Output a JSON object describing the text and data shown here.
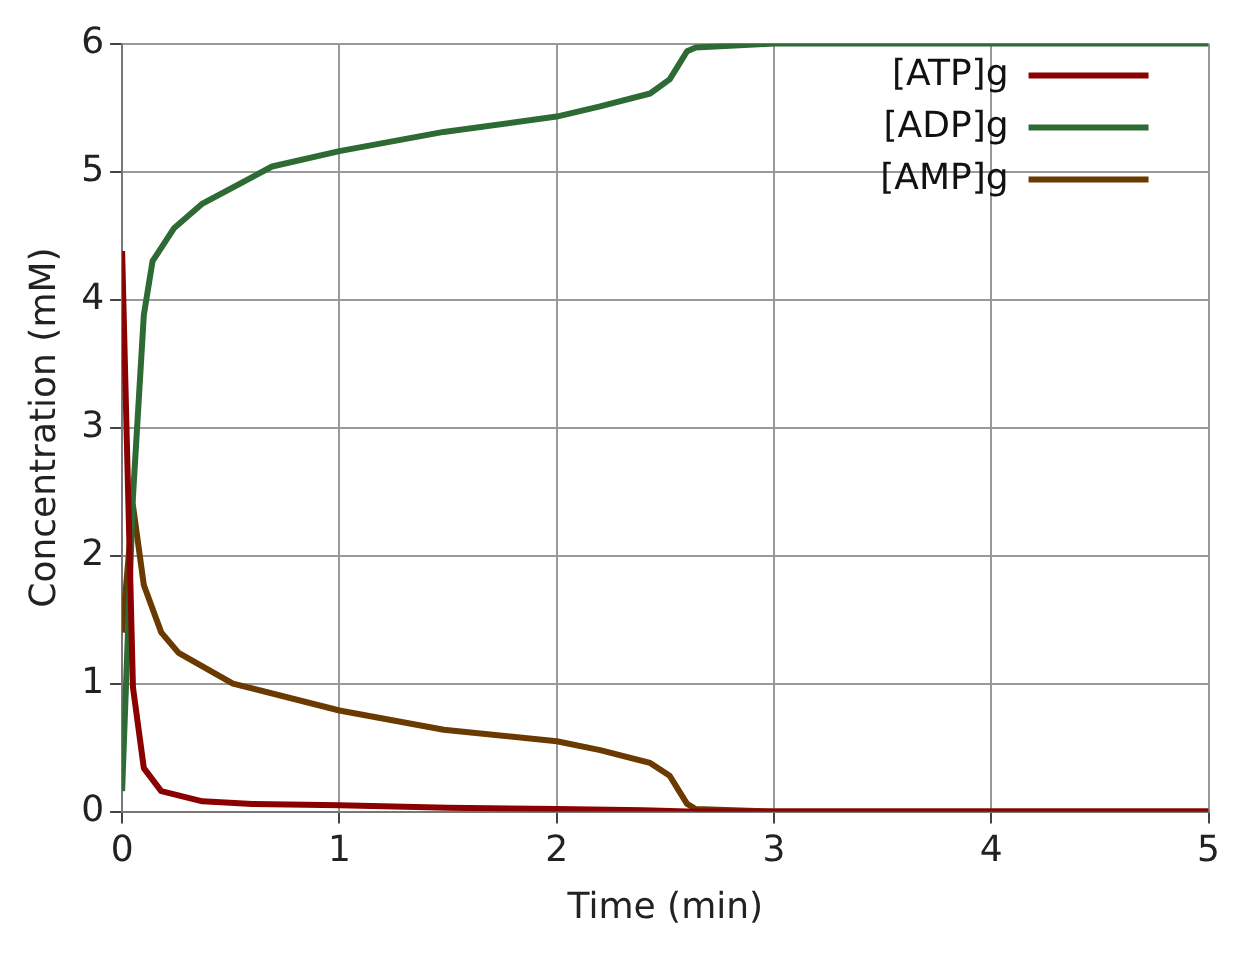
{
  "chart_data": {
    "type": "line",
    "xlabel": "Time (min)",
    "ylabel": "Concentration (mM)",
    "xlim": [
      0,
      5
    ],
    "xticks": [
      0,
      1,
      2,
      3,
      4,
      5
    ],
    "ylim": [
      0,
      6
    ],
    "yticks": [
      0,
      1,
      2,
      3,
      4,
      5,
      6
    ],
    "grid": true,
    "legend": "top right",
    "line_style": "solid",
    "marker": "none",
    "series": [
      {
        "name": "[ATP]g",
        "color": "#8b0000",
        "x": [
          0,
          0.05,
          0.1,
          0.18,
          0.37,
          0.6,
          1.0,
          1.5,
          2.0,
          2.4,
          2.6,
          3.0,
          4.0,
          5.0
        ],
        "values": [
          4.38,
          0.97,
          0.34,
          0.16,
          0.08,
          0.06,
          0.05,
          0.03,
          0.02,
          0.01,
          0,
          0,
          0,
          0
        ]
      },
      {
        "name": "[ADP]g",
        "color": "#2e6b34",
        "x": [
          0,
          0.05,
          0.1,
          0.14,
          0.24,
          0.37,
          0.69,
          1.0,
          1.48,
          2.0,
          2.2,
          2.43,
          2.52,
          2.56,
          2.6,
          2.64,
          3.0,
          4.0,
          5.0
        ],
        "values": [
          0.16,
          2.46,
          3.88,
          4.3,
          4.56,
          4.75,
          5.04,
          5.16,
          5.31,
          5.43,
          5.51,
          5.61,
          5.72,
          5.83,
          5.94,
          5.97,
          6.0,
          6.0,
          6.0
        ]
      },
      {
        "name": "[AMP]g",
        "color": "#6b3a00",
        "x": [
          0,
          0.05,
          0.1,
          0.18,
          0.26,
          0.51,
          1.0,
          1.48,
          2.0,
          2.2,
          2.43,
          2.52,
          2.56,
          2.6,
          2.64,
          3.0,
          4.0,
          5.0
        ],
        "values": [
          1.4,
          2.39,
          1.77,
          1.4,
          1.24,
          1.0,
          0.79,
          0.64,
          0.55,
          0.48,
          0.38,
          0.28,
          0.17,
          0.06,
          0.02,
          0,
          0,
          0
        ]
      }
    ]
  }
}
